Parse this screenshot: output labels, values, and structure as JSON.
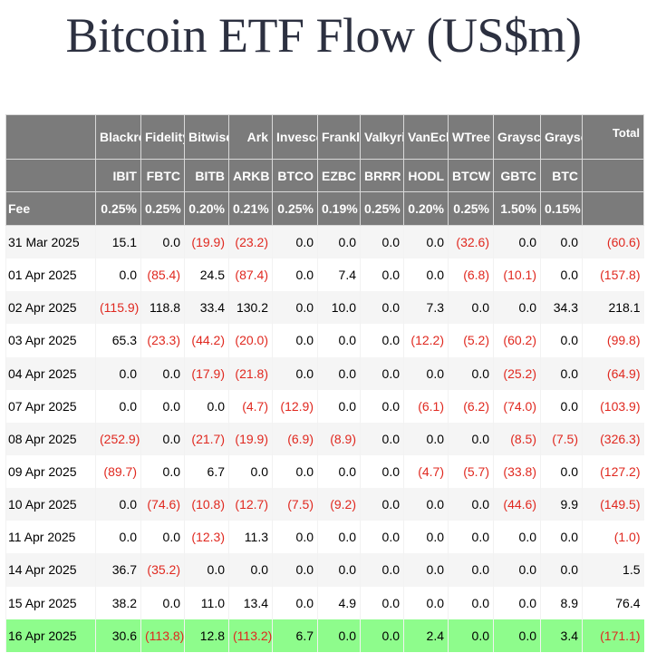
{
  "title": "Bitcoin ETF Flow (US$m)",
  "header": {
    "total_label": "Total",
    "fee_label": "Fee",
    "columns": [
      {
        "issuer": "Blackrock",
        "ticker": "IBIT",
        "fee": "0.25%"
      },
      {
        "issuer": "Fidelity",
        "ticker": "FBTC",
        "fee": "0.25%"
      },
      {
        "issuer": "Bitwise",
        "ticker": "BITB",
        "fee": "0.20%"
      },
      {
        "issuer": "Ark",
        "ticker": "ARKB",
        "fee": "0.21%"
      },
      {
        "issuer": "Invesco",
        "ticker": "BTCO",
        "fee": "0.25%"
      },
      {
        "issuer": "Franklin",
        "ticker": "EZBC",
        "fee": "0.19%"
      },
      {
        "issuer": "Valkyrie",
        "ticker": "BRRR",
        "fee": "0.25%"
      },
      {
        "issuer": "VanEck",
        "ticker": "HODL",
        "fee": "0.20%"
      },
      {
        "issuer": "WTree",
        "ticker": "BTCW",
        "fee": "0.25%"
      },
      {
        "issuer": "Grayscale",
        "ticker": "GBTC",
        "fee": "1.50%"
      },
      {
        "issuer": "Grayscale",
        "ticker": "BTC",
        "fee": "0.15%"
      }
    ]
  },
  "rows": [
    {
      "date": "31 Mar 2025",
      "values": [
        "15.1",
        "0.0",
        "(19.9)",
        "(23.2)",
        "0.0",
        "0.0",
        "0.0",
        "0.0",
        "(32.6)",
        "0.0",
        "0.0"
      ],
      "total": "(60.6)"
    },
    {
      "date": "01 Apr 2025",
      "values": [
        "0.0",
        "(85.4)",
        "24.5",
        "(87.4)",
        "0.0",
        "7.4",
        "0.0",
        "0.0",
        "(6.8)",
        "(10.1)",
        "0.0"
      ],
      "total": "(157.8)"
    },
    {
      "date": "02 Apr 2025",
      "values": [
        "(115.9)",
        "118.8",
        "33.4",
        "130.2",
        "0.0",
        "10.0",
        "0.0",
        "7.3",
        "0.0",
        "0.0",
        "34.3"
      ],
      "total": "218.1"
    },
    {
      "date": "03 Apr 2025",
      "values": [
        "65.3",
        "(23.3)",
        "(44.2)",
        "(20.0)",
        "0.0",
        "0.0",
        "0.0",
        "(12.2)",
        "(5.2)",
        "(60.2)",
        "0.0"
      ],
      "total": "(99.8)"
    },
    {
      "date": "04 Apr 2025",
      "values": [
        "0.0",
        "0.0",
        "(17.9)",
        "(21.8)",
        "0.0",
        "0.0",
        "0.0",
        "0.0",
        "0.0",
        "(25.2)",
        "0.0"
      ],
      "total": "(64.9)"
    },
    {
      "date": "07 Apr 2025",
      "values": [
        "0.0",
        "0.0",
        "0.0",
        "(4.7)",
        "(12.9)",
        "0.0",
        "0.0",
        "(6.1)",
        "(6.2)",
        "(74.0)",
        "0.0"
      ],
      "total": "(103.9)"
    },
    {
      "date": "08 Apr 2025",
      "values": [
        "(252.9)",
        "0.0",
        "(21.7)",
        "(19.9)",
        "(6.9)",
        "(8.9)",
        "0.0",
        "0.0",
        "0.0",
        "(8.5)",
        "(7.5)"
      ],
      "total": "(326.3)"
    },
    {
      "date": "09 Apr 2025",
      "values": [
        "(89.7)",
        "0.0",
        "6.7",
        "0.0",
        "0.0",
        "0.0",
        "0.0",
        "(4.7)",
        "(5.7)",
        "(33.8)",
        "0.0"
      ],
      "total": "(127.2)"
    },
    {
      "date": "10 Apr 2025",
      "values": [
        "0.0",
        "(74.6)",
        "(10.8)",
        "(12.7)",
        "(7.5)",
        "(9.2)",
        "0.0",
        "0.0",
        "0.0",
        "(44.6)",
        "9.9"
      ],
      "total": "(149.5)"
    },
    {
      "date": "11 Apr 2025",
      "values": [
        "0.0",
        "0.0",
        "(12.3)",
        "11.3",
        "0.0",
        "0.0",
        "0.0",
        "0.0",
        "0.0",
        "0.0",
        "0.0"
      ],
      "total": "(1.0)"
    },
    {
      "date": "14 Apr 2025",
      "values": [
        "36.7",
        "(35.2)",
        "0.0",
        "0.0",
        "0.0",
        "0.0",
        "0.0",
        "0.0",
        "0.0",
        "0.0",
        "0.0"
      ],
      "total": "1.5"
    },
    {
      "date": "15 Apr 2025",
      "values": [
        "38.2",
        "0.0",
        "11.0",
        "13.4",
        "0.0",
        "4.9",
        "0.0",
        "0.0",
        "0.0",
        "0.0",
        "8.9"
      ],
      "total": "76.4"
    },
    {
      "date": "16 Apr 2025",
      "values": [
        "30.6",
        "(113.8)",
        "12.8",
        "(113.2)",
        "6.7",
        "0.0",
        "0.0",
        "2.4",
        "0.0",
        "0.0",
        "3.4"
      ],
      "total": "(171.1)",
      "highlight": true
    }
  ],
  "colors": {
    "header_bg": "#7b7b7b",
    "negative": "#e0281f",
    "highlight_row": "#8efc8c",
    "title": "#2c3040"
  }
}
